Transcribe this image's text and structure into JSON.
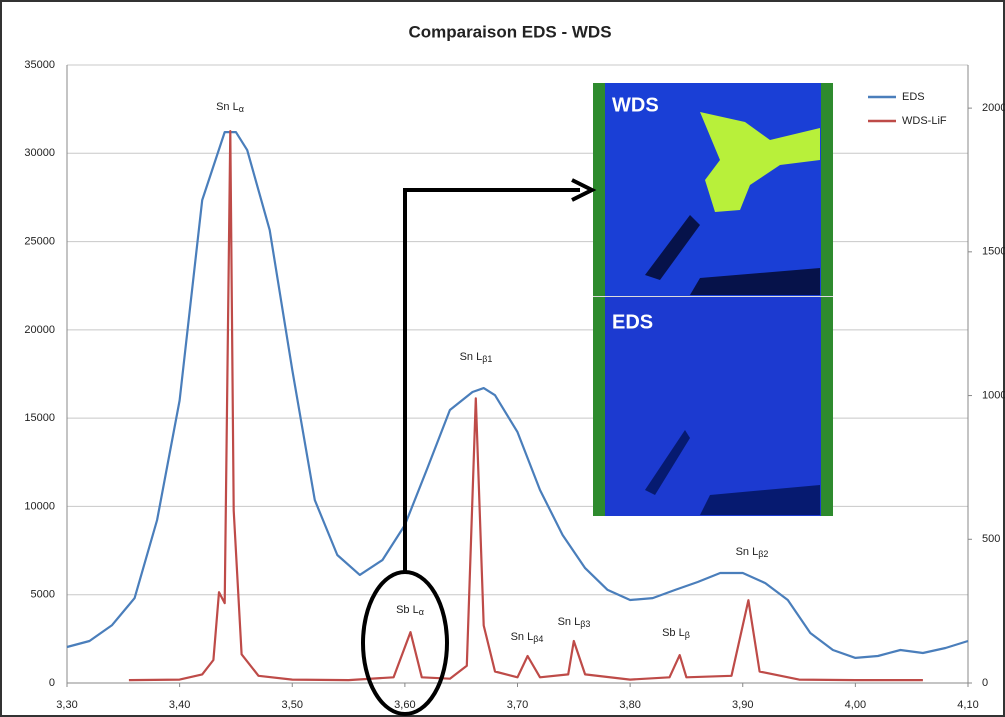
{
  "chart_data": {
    "type": "line",
    "title": "Comparaison EDS - WDS",
    "xlim": [
      3.3,
      4.1
    ],
    "xticks": [
      {
        "value": 3.3,
        "label": "3,30"
      },
      {
        "value": 3.4,
        "label": "3,40"
      },
      {
        "value": 3.5,
        "label": "3,50"
      },
      {
        "value": 3.6,
        "label": "3,60"
      },
      {
        "value": 3.7,
        "label": "3,70"
      },
      {
        "value": 3.8,
        "label": "3,80"
      },
      {
        "value": 3.9,
        "label": "3,90"
      },
      {
        "value": 4.0,
        "label": "4,00"
      },
      {
        "value": 4.1,
        "label": "4,10"
      }
    ],
    "ylim": [
      0,
      35000
    ],
    "yticks": [
      0,
      5000,
      10000,
      15000,
      20000,
      25000,
      30000,
      35000
    ],
    "y2lim": [
      0,
      2150
    ],
    "y2ticks": [
      0,
      500,
      1000,
      1500,
      2000
    ],
    "grid": true,
    "legend": "top-right",
    "series": [
      {
        "name": "EDS",
        "color": "#4a7ebb",
        "x": [
          3.3,
          3.32,
          3.34,
          3.36,
          3.38,
          3.4,
          3.42,
          3.44,
          3.45,
          3.46,
          3.48,
          3.5,
          3.52,
          3.54,
          3.56,
          3.58,
          3.6,
          3.62,
          3.64,
          3.66,
          3.67,
          3.68,
          3.7,
          3.72,
          3.74,
          3.76,
          3.78,
          3.8,
          3.82,
          3.84,
          3.86,
          3.88,
          3.9,
          3.92,
          3.94,
          3.96,
          3.98,
          4.0,
          4.02,
          4.04,
          4.06,
          4.08,
          4.1
        ],
        "values": [
          2040,
          2380,
          3280,
          4810,
          9230,
          16000,
          27350,
          31200,
          31200,
          30180,
          25650,
          17720,
          10360,
          7250,
          6120,
          6960,
          8950,
          12170,
          15460,
          16480,
          16700,
          16300,
          14210,
          10930,
          8380,
          6510,
          5270,
          4700,
          4810,
          5270,
          5720,
          6230,
          6230,
          5660,
          4700,
          2830,
          1870,
          1420,
          1530,
          1870,
          1700,
          1980,
          2380
        ]
      },
      {
        "name": "WDS-LiF",
        "color": "#be4b48",
        "axis": "y2",
        "x": [
          3.355,
          3.4,
          3.42,
          3.43,
          3.435,
          3.44,
          3.445,
          3.448,
          3.455,
          3.47,
          3.5,
          3.55,
          3.59,
          3.605,
          3.615,
          3.64,
          3.655,
          3.663,
          3.67,
          3.68,
          3.7,
          3.709,
          3.72,
          3.745,
          3.75,
          3.76,
          3.8,
          3.835,
          3.844,
          3.85,
          3.89,
          3.905,
          3.915,
          3.95,
          4.0,
          4.06
        ],
        "values": [
          10,
          12,
          30,
          80,
          316,
          278,
          1920,
          600,
          100,
          25,
          12,
          10,
          20,
          177,
          20,
          15,
          60,
          990,
          200,
          40,
          20,
          94,
          20,
          30,
          146,
          30,
          12,
          20,
          97,
          20,
          25,
          288,
          40,
          12,
          10,
          10
        ]
      }
    ],
    "annotations": [
      {
        "text": "Sn L",
        "sub": "α"
      },
      {
        "text": "Sn L",
        "sub": "β1"
      },
      {
        "text": "Sb L",
        "sub": "α"
      },
      {
        "text": "Sn L",
        "sub": "β4"
      },
      {
        "text": "Sn L",
        "sub": "β3"
      },
      {
        "text": "Sb L",
        "sub": "β"
      },
      {
        "text": "Sn L",
        "sub": "β2"
      }
    ],
    "insets": [
      "WDS",
      "EDS"
    ]
  }
}
